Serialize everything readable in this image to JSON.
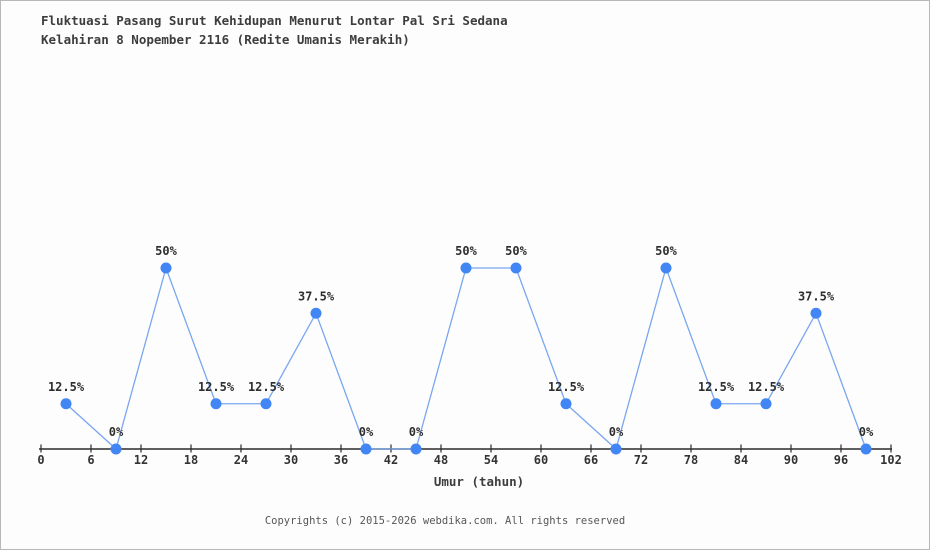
{
  "title": {
    "line1": "Fluktuasi Pasang Surut Kehidupan Menurut Lontar Pal Sri Sedana",
    "line2": "Kelahiran 8 Nopember 2116 (Redite Umanis Merakih)"
  },
  "chart_data": {
    "type": "line",
    "title": "Fluktuasi Pasang Surut Kehidupan Menurut Lontar Pal Sri Sedana Kelahiran 8 Nopember 2116 (Redite Umanis Merakih)",
    "x": [
      3,
      9,
      15,
      21,
      27,
      33,
      39,
      45,
      51,
      57,
      63,
      69,
      75,
      81,
      87,
      93,
      99
    ],
    "values": [
      12.5,
      0,
      50,
      12.5,
      12.5,
      37.5,
      0,
      0,
      50,
      50,
      12.5,
      0,
      50,
      12.5,
      12.5,
      37.5,
      0
    ],
    "point_labels": [
      "12.5%",
      "0%",
      "50%",
      "12.5%",
      "12.5%",
      "37.5%",
      "0%",
      "0%",
      "50%",
      "50%",
      "12.5%",
      "0%",
      "50%",
      "12.5%",
      "12.5%",
      "37.5%",
      "0%"
    ],
    "x_ticks": [
      0,
      6,
      12,
      18,
      24,
      30,
      36,
      42,
      48,
      54,
      60,
      66,
      72,
      78,
      84,
      90,
      96,
      102
    ],
    "xlabel": "Umur (tahun)",
    "ylabel": "",
    "xlim": [
      0,
      102
    ],
    "ylim": [
      0,
      100
    ],
    "grid": false,
    "legend": false,
    "colors": {
      "marker": "#4285f4",
      "line": "#7aa6f0",
      "axis": "#2b2b2b",
      "label": "#2e2e2e"
    }
  },
  "footer": {
    "copyright": "Copyrights (c) 2015-2026 webdika.com. All rights reserved"
  }
}
